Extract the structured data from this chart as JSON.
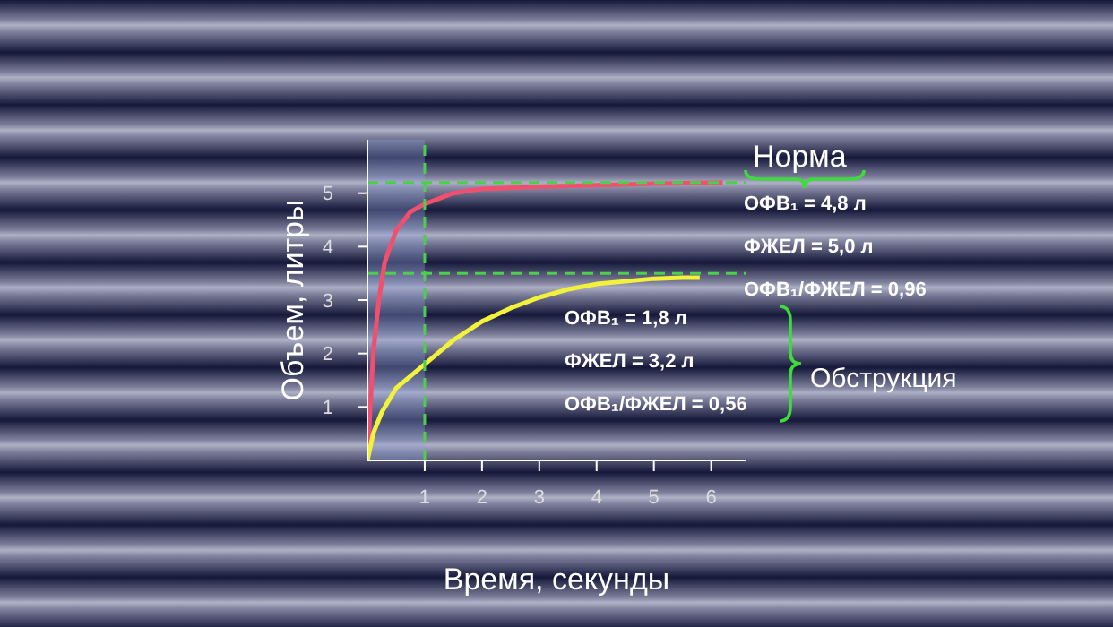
{
  "chart_data": {
    "type": "line",
    "xlabel": "Время, секунды",
    "ylabel": "Объем, литры",
    "xlim": [
      0,
      6.6
    ],
    "xticks": [
      1,
      2,
      3,
      4,
      5,
      6
    ],
    "ylim": [
      0,
      6
    ],
    "yticks": [
      1,
      2,
      3,
      4,
      5
    ],
    "series": [
      {
        "color": "#f0506e",
        "x": [
          0,
          0.05,
          0.1,
          0.2,
          0.3,
          0.5,
          0.75,
          1,
          1.5,
          2,
          3,
          4,
          5,
          6.2
        ],
        "values": [
          0,
          1.0,
          2.0,
          3.0,
          3.7,
          4.3,
          4.65,
          4.8,
          5.0,
          5.08,
          5.12,
          5.15,
          5.18,
          5.2
        ]
      },
      {
        "color": "#f2f23a",
        "x": [
          0,
          0.1,
          0.25,
          0.5,
          1,
          1.5,
          2,
          2.5,
          3,
          3.5,
          4,
          4.5,
          5,
          5.5,
          5.8
        ],
        "values": [
          0,
          0.5,
          0.9,
          1.35,
          1.8,
          2.25,
          2.6,
          2.85,
          3.05,
          3.2,
          3.3,
          3.35,
          3.4,
          3.42,
          3.42
        ]
      }
    ],
    "ref_lines": [
      {
        "axis": "y",
        "value": 5.2,
        "color": "#4ccf4c",
        "line_style": "dashed"
      },
      {
        "axis": "y",
        "value": 3.5,
        "color": "#4ccf4c",
        "line_style": "dashed"
      },
      {
        "axis": "x",
        "value": 1,
        "color": "#4ccf4c",
        "line_style": "dashed"
      }
    ],
    "bands": [
      {
        "axis": "x",
        "from": 0,
        "to": 1,
        "color": "#8fa0d8"
      }
    ],
    "annotations": [
      "Норма",
      "ОФВ₁ = 4,8 л",
      "ФЖЕЛ = 5,0 л",
      "ОФВ₁/ФЖЕЛ = 0,96",
      "ОФВ₁ = 1,8 л",
      "ФЖЕЛ = 3,2 л",
      "ОФВ₁/ФЖЕЛ = 0,56",
      "Обструкция"
    ],
    "grid": false,
    "legend": false,
    "marker": "none",
    "line_style": "solid"
  }
}
